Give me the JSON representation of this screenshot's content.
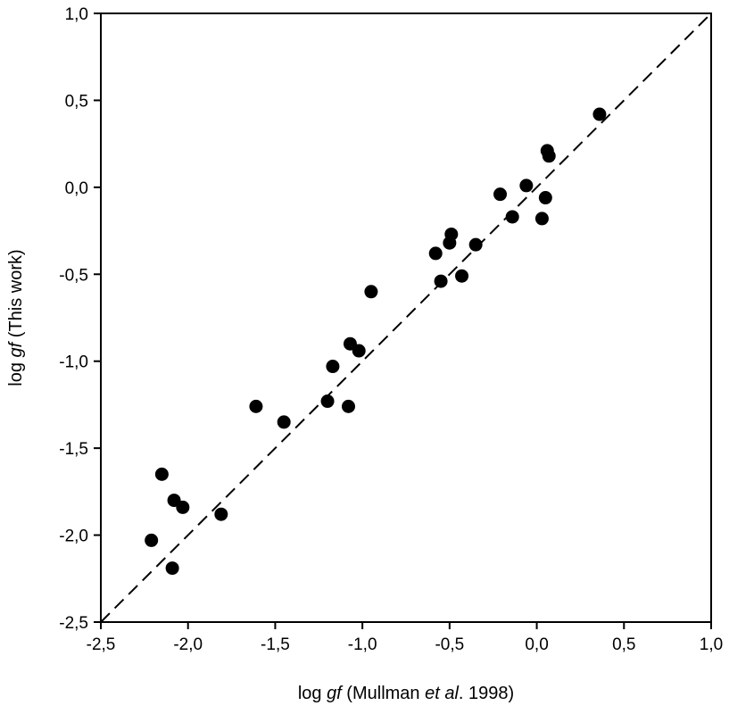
{
  "chart_data": {
    "type": "scatter",
    "title": "",
    "xlabel": {
      "parts": [
        {
          "text": "log ",
          "italic": false
        },
        {
          "text": "gf",
          "italic": true
        },
        {
          "text": " (Mullman ",
          "italic": false
        },
        {
          "text": "et al",
          "italic": true
        },
        {
          "text": ". 1998)",
          "italic": false
        }
      ]
    },
    "ylabel": {
      "parts": [
        {
          "text": "log ",
          "italic": false
        },
        {
          "text": "gf",
          "italic": true
        },
        {
          "text": " (This work)",
          "italic": false
        }
      ]
    },
    "xlim": [
      -2.5,
      1.0
    ],
    "ylim": [
      -2.5,
      1.0
    ],
    "x_ticks": [
      -2.5,
      -2.0,
      -1.5,
      -1.0,
      -0.5,
      0.0,
      0.5,
      1.0
    ],
    "y_ticks": [
      -2.5,
      -2.0,
      -1.5,
      -1.0,
      -0.5,
      0.0,
      0.5,
      1.0
    ],
    "x_tick_labels": [
      "-2,5",
      "-2,0",
      "-1,5",
      "-1,0",
      "-0,5",
      "0,0",
      "0,5",
      "1,0"
    ],
    "y_tick_labels": [
      "-2,5",
      "-2,0",
      "-1,5",
      "-1,0",
      "-0,5",
      "0,0",
      "0,5",
      "1,0"
    ],
    "grid": false,
    "reference_line": {
      "style": "dashed",
      "from": [
        -2.5,
        -2.5
      ],
      "to": [
        1.0,
        1.0
      ]
    },
    "marker_color": "#000000",
    "points": [
      {
        "x": 0.36,
        "y": 0.42
      },
      {
        "x": 0.06,
        "y": 0.21
      },
      {
        "x": 0.07,
        "y": 0.18
      },
      {
        "x": -0.06,
        "y": 0.01
      },
      {
        "x": -0.21,
        "y": -0.04
      },
      {
        "x": 0.05,
        "y": -0.06
      },
      {
        "x": -0.14,
        "y": -0.17
      },
      {
        "x": 0.03,
        "y": -0.18
      },
      {
        "x": -0.49,
        "y": -0.27
      },
      {
        "x": -0.5,
        "y": -0.32
      },
      {
        "x": -0.35,
        "y": -0.33
      },
      {
        "x": -0.58,
        "y": -0.38
      },
      {
        "x": -0.43,
        "y": -0.51
      },
      {
        "x": -0.55,
        "y": -0.54
      },
      {
        "x": -0.95,
        "y": -0.6
      },
      {
        "x": -1.07,
        "y": -0.9
      },
      {
        "x": -1.02,
        "y": -0.94
      },
      {
        "x": -1.17,
        "y": -1.03
      },
      {
        "x": -1.2,
        "y": -1.23
      },
      {
        "x": -1.08,
        "y": -1.26
      },
      {
        "x": -1.61,
        "y": -1.26
      },
      {
        "x": -1.45,
        "y": -1.35
      },
      {
        "x": -2.15,
        "y": -1.65
      },
      {
        "x": -2.08,
        "y": -1.8
      },
      {
        "x": -2.03,
        "y": -1.84
      },
      {
        "x": -1.81,
        "y": -1.88
      },
      {
        "x": -2.21,
        "y": -2.03
      },
      {
        "x": -2.09,
        "y": -2.19
      }
    ]
  }
}
